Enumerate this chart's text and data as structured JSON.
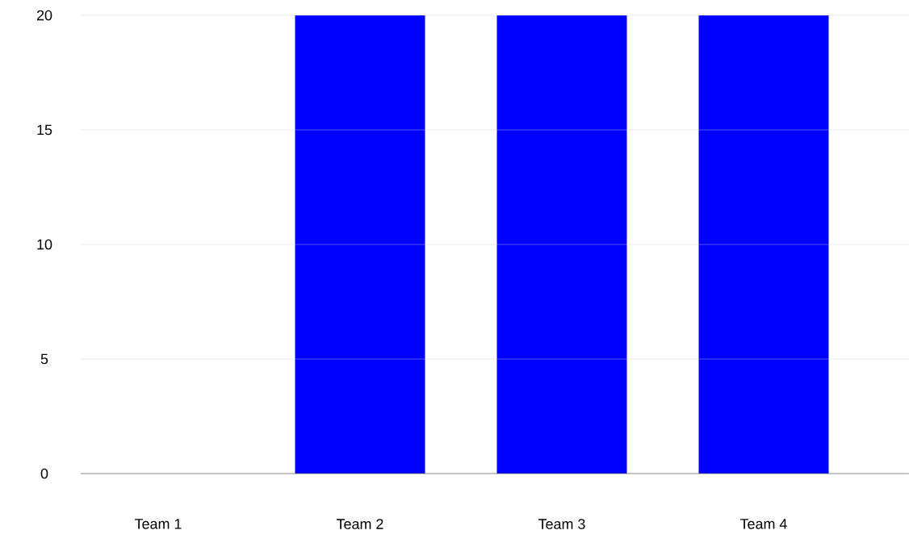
{
  "chart_data": {
    "type": "bar",
    "categories": [
      "Team 1",
      "Team 2",
      "Team 3",
      "Team 4"
    ],
    "values": [
      0,
      20,
      20,
      20
    ],
    "color": "#0000ff",
    "ylim": [
      0,
      20
    ],
    "yticks": [
      0,
      5,
      10,
      15,
      20
    ],
    "grid": "y"
  }
}
